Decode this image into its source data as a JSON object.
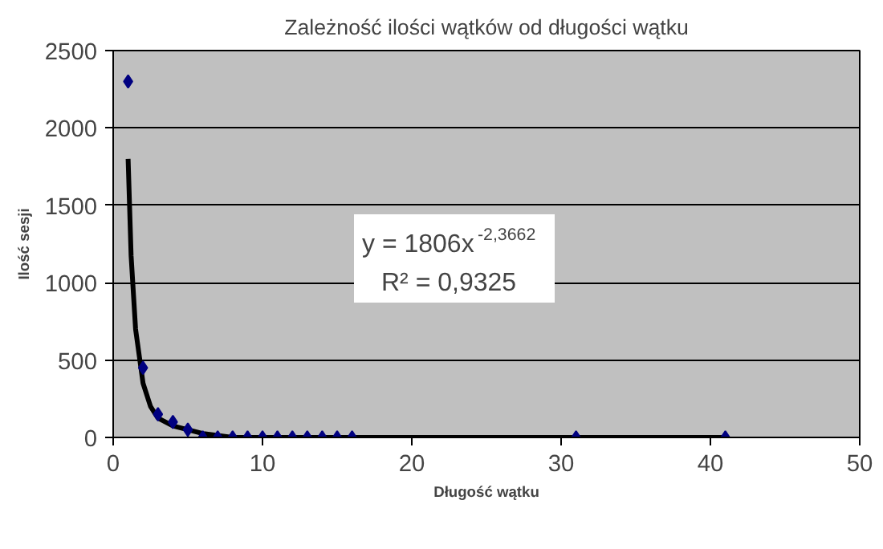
{
  "chart_data": {
    "type": "scatter",
    "title": "Zależność ilości wątków od długości wątku",
    "xlabel": "Długość wątku",
    "ylabel": "Ilość sesji",
    "xlim": [
      0,
      50
    ],
    "xticks": [
      0,
      10,
      20,
      30,
      40,
      50
    ],
    "ylim": [
      0,
      2500
    ],
    "yticks": [
      0,
      500,
      1000,
      1500,
      2000,
      2500
    ],
    "grid": "y",
    "marker": "diamond",
    "series": [
      {
        "color": "#000080",
        "x": [
          1,
          2,
          3,
          4,
          5,
          6,
          7,
          8,
          9,
          10,
          11,
          12,
          13,
          14,
          15,
          16,
          31,
          41
        ],
        "values": [
          2300,
          450,
          150,
          100,
          50,
          0,
          0,
          0,
          0,
          0,
          0,
          0,
          0,
          0,
          0,
          0,
          0,
          0
        ]
      },
      {
        "type": "line",
        "marker": "none",
        "color": "#000000",
        "x": [
          1,
          1.2,
          1.5,
          2,
          2.5,
          3,
          4,
          5,
          6,
          8,
          10,
          15,
          20,
          30,
          41
        ],
        "values": [
          1800,
          1175,
          700,
          350,
          200,
          125,
          75,
          50,
          25,
          0,
          0,
          0,
          0,
          0,
          0
        ]
      }
    ],
    "annotations": [
      "y = 1806x$^{-2,3662}$",
      "R² = 0,9325"
    ]
  }
}
